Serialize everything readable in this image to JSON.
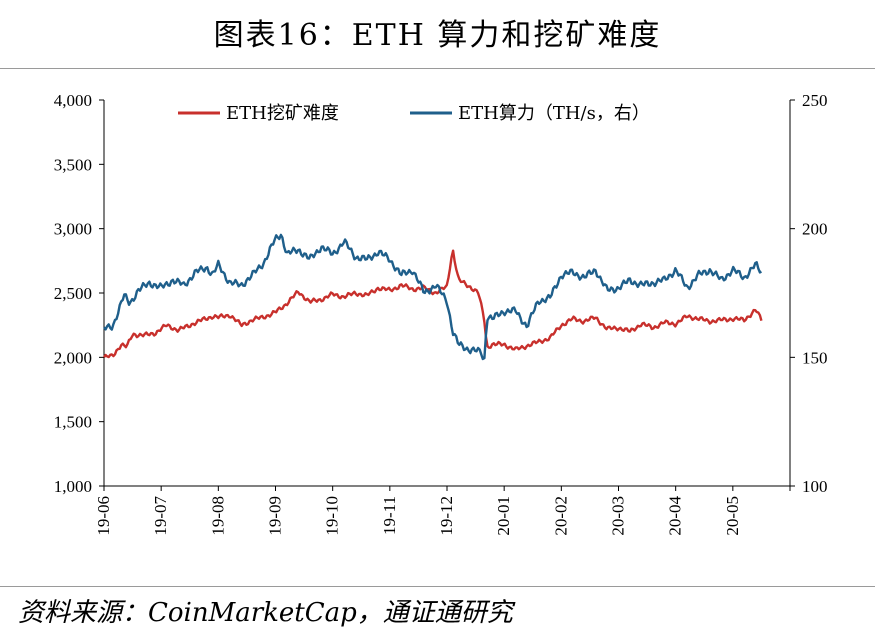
{
  "title": "图表16：ETH 算力和挖矿难度",
  "source": "资料来源：CoinMarketCap，通证通研究",
  "colors": {
    "difficulty": "#c8302c",
    "hashrate": "#1f5f8b",
    "axis": "#000000"
  },
  "chart_data": {
    "type": "line",
    "title": "图表16：ETH 算力和挖矿难度",
    "legend_position": "top",
    "grid": false,
    "x_tick_labels": [
      "19-06",
      "19-07",
      "19-08",
      "19-09",
      "19-10",
      "19-11",
      "19-12",
      "20-01",
      "20-02",
      "20-03",
      "20-04",
      "20-05"
    ],
    "x_range_months": [
      0,
      12
    ],
    "y_left": {
      "ylim": [
        1000,
        4000
      ],
      "ticks": [
        1000,
        1500,
        2000,
        2500,
        3000,
        3500,
        4000
      ],
      "tick_labels": [
        "1,000",
        "1,500",
        "2,000",
        "2,500",
        "3,000",
        "3,500",
        "4,000"
      ]
    },
    "y_right": {
      "ylim": [
        100,
        250
      ],
      "ticks": [
        100,
        150,
        200,
        250
      ],
      "tick_labels": [
        "100",
        "150",
        "200",
        "250"
      ]
    },
    "series": [
      {
        "name": "ETH挖矿难度",
        "axis": "left",
        "x": [
          0,
          0.15,
          0.3,
          0.4,
          0.5,
          0.7,
          0.9,
          1.1,
          1.3,
          1.6,
          1.9,
          2.0,
          2.2,
          2.4,
          2.6,
          2.9,
          3.0,
          3.2,
          3.4,
          3.6,
          3.8,
          4.0,
          4.2,
          4.4,
          4.6,
          4.8,
          5.0,
          5.2,
          5.4,
          5.6,
          5.8,
          6.0,
          6.05,
          6.1,
          6.2,
          6.4,
          6.55,
          6.65,
          6.7,
          6.8,
          7.0,
          7.2,
          7.4,
          7.6,
          7.8,
          8.0,
          8.2,
          8.4,
          8.6,
          8.8,
          9.0,
          9.2,
          9.4,
          9.6,
          9.8,
          10.0,
          10.2,
          10.4,
          10.6,
          10.8,
          11.0,
          11.2,
          11.4,
          11.5
        ],
        "values": [
          2000,
          2010,
          2100,
          2080,
          2180,
          2170,
          2190,
          2250,
          2210,
          2270,
          2320,
          2310,
          2330,
          2250,
          2290,
          2330,
          2350,
          2420,
          2510,
          2430,
          2450,
          2490,
          2470,
          2500,
          2480,
          2540,
          2520,
          2560,
          2530,
          2540,
          2500,
          2550,
          2700,
          2840,
          2600,
          2550,
          2500,
          2300,
          2080,
          2100,
          2100,
          2060,
          2090,
          2120,
          2150,
          2250,
          2300,
          2280,
          2310,
          2220,
          2230,
          2200,
          2260,
          2230,
          2270,
          2260,
          2320,
          2300,
          2280,
          2290,
          2300,
          2290,
          2370,
          2290
        ]
      },
      {
        "name": "ETH算力（TH/s，右）",
        "axis": "right",
        "x": [
          0,
          0.15,
          0.25,
          0.35,
          0.45,
          0.6,
          0.8,
          1.0,
          1.2,
          1.4,
          1.6,
          1.8,
          1.9,
          2.0,
          2.2,
          2.4,
          2.6,
          2.8,
          3.0,
          3.1,
          3.2,
          3.4,
          3.6,
          3.8,
          4.0,
          4.2,
          4.4,
          4.6,
          4.8,
          5.0,
          5.2,
          5.4,
          5.6,
          5.8,
          6.0,
          6.1,
          6.2,
          6.4,
          6.6,
          6.65,
          6.7,
          6.8,
          7.0,
          7.2,
          7.4,
          7.6,
          7.8,
          8.0,
          8.2,
          8.4,
          8.6,
          8.8,
          9.0,
          9.2,
          9.4,
          9.6,
          9.8,
          10.0,
          10.2,
          10.4,
          10.6,
          10.8,
          11.0,
          11.2,
          11.4,
          11.5
        ],
        "values": [
          161,
          162,
          168,
          174,
          171,
          176,
          179,
          177,
          180,
          178,
          183,
          185,
          182,
          186,
          179,
          178,
          182,
          187,
          196,
          198,
          190,
          192,
          188,
          193,
          190,
          195,
          189,
          188,
          191,
          188,
          182,
          184,
          175,
          178,
          172,
          160,
          155,
          153,
          152,
          148,
          166,
          165,
          168,
          168,
          162,
          172,
          173,
          182,
          183,
          181,
          184,
          176,
          177,
          180,
          178,
          179,
          180,
          184,
          177,
          182,
          184,
          180,
          184,
          181,
          186,
          183
        ]
      }
    ]
  }
}
